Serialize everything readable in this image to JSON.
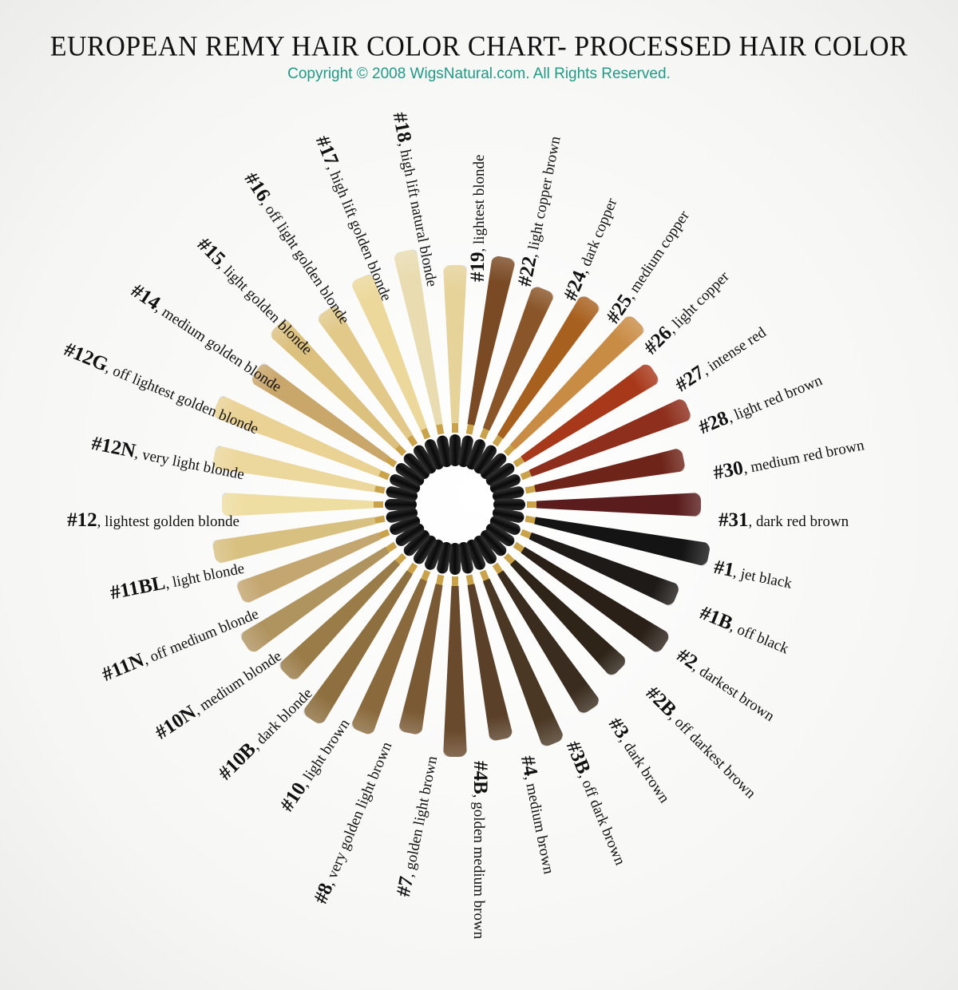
{
  "header": {
    "title": "EUROPEAN REMY HAIR COLOR CHART- PROCESSED HAIR COLOR",
    "copyright": "Copyright © 2008 WigsNatural.com. All Rights Reserved.",
    "copyright_color": "#1f9a86"
  },
  "swatches": [
    {
      "num": "#12",
      "name": "lightest golden blonde",
      "color": "#efdea2"
    },
    {
      "num": "#12N",
      "name": "very light blonde",
      "color": "#ecd79c"
    },
    {
      "num": "#12G",
      "name": "off lightest golden blonde",
      "color": "#ead294"
    },
    {
      "num": "#14",
      "name": "medium golden blonde",
      "color": "#c9a66a"
    },
    {
      "num": "#15",
      "name": "light golden blonde",
      "color": "#dcc07e"
    },
    {
      "num": "#16",
      "name": "off light golden blonde",
      "color": "#e2c98a"
    },
    {
      "num": "#17",
      "name": "high lift golden blonde",
      "color": "#ecd89a"
    },
    {
      "num": "#18",
      "name": "high lift natural blonde",
      "color": "#e9dcb0"
    },
    {
      "num": "#19",
      "name": "lightest blonde",
      "color": "#e6d39a"
    },
    {
      "num": "#22",
      "name": "light copper brown",
      "color": "#7a4a24"
    },
    {
      "num": "#24",
      "name": "dark copper",
      "color": "#8a5528"
    },
    {
      "num": "#25",
      "name": "medium copper",
      "color": "#a8601e"
    },
    {
      "num": "#26",
      "name": "light copper",
      "color": "#c98c45"
    },
    {
      "num": "#27",
      "name": "intense red",
      "color": "#a8381a"
    },
    {
      "num": "#28",
      "name": "light red brown",
      "color": "#8e2e1c"
    },
    {
      "num": "#30",
      "name": "medium red brown",
      "color": "#6e2418"
    },
    {
      "num": "#31",
      "name": "dark red brown",
      "color": "#5a1c1c"
    },
    {
      "num": "#1",
      "name": "jet black",
      "color": "#141414"
    },
    {
      "num": "#1B",
      "name": "off black",
      "color": "#1e1a18"
    },
    {
      "num": "#2",
      "name": "darkest brown",
      "color": "#2a2018"
    },
    {
      "num": "#2B",
      "name": "off darkest brown",
      "color": "#2e2418"
    },
    {
      "num": "#3",
      "name": "dark brown",
      "color": "#3a2c1e"
    },
    {
      "num": "#3B",
      "name": "off dark brown",
      "color": "#4a3824"
    },
    {
      "num": "#4",
      "name": "medium brown",
      "color": "#5a4028"
    },
    {
      "num": "#4B",
      "name": "golden medium brown",
      "color": "#6a4a2c"
    },
    {
      "num": "#7",
      "name": "golden light brown",
      "color": "#7a5a34"
    },
    {
      "num": "#8",
      "name": "very golden light brown",
      "color": "#8a6a3c"
    },
    {
      "num": "#10",
      "name": "light brown",
      "color": "#8e7040"
    },
    {
      "num": "#10B",
      "name": "dark blonde",
      "color": "#9a7c48"
    },
    {
      "num": "#10N",
      "name": "medium blonde",
      "color": "#b09460"
    },
    {
      "num": "#11N",
      "name": "off medium blonde",
      "color": "#c4a670"
    },
    {
      "num": "#11BL",
      "name": "light blonde",
      "color": "#d8c080"
    }
  ]
}
